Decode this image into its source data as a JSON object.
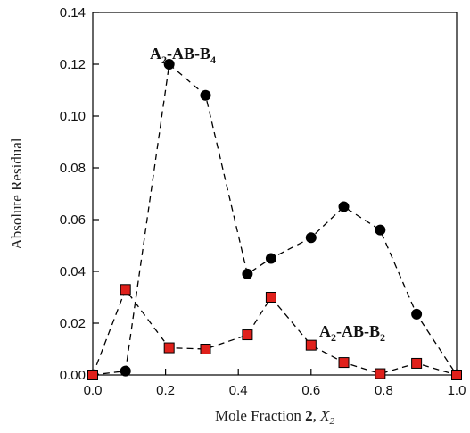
{
  "chart_data": {
    "type": "line",
    "xlabel_parts": [
      "Mole Fraction ",
      "2",
      ", X",
      "2"
    ],
    "ylabel": "Absolute Residual",
    "xlim": [
      0.0,
      1.0
    ],
    "ylim": [
      0.0,
      0.14
    ],
    "x_ticks": [
      "0.0",
      "0.2",
      "0.4",
      "0.6",
      "0.8",
      "1.0"
    ],
    "y_ticks": [
      "0.00",
      "0.02",
      "0.04",
      "0.06",
      "0.08",
      "0.10",
      "0.12",
      "0.14"
    ],
    "grid": false,
    "series": [
      {
        "name_parts": [
          "A",
          "2",
          "-AB-B",
          "4"
        ],
        "marker": "circle",
        "color": "#000000",
        "line_style": "dashed",
        "x": [
          0.0,
          0.09,
          0.21,
          0.31,
          0.425,
          0.49,
          0.6,
          0.69,
          0.79,
          0.89,
          1.0
        ],
        "y": [
          0.0,
          0.0015,
          0.12,
          0.108,
          0.039,
          0.045,
          0.053,
          0.065,
          0.056,
          0.0235,
          0.0
        ]
      },
      {
        "name_parts": [
          "A",
          "2",
          "-AB-B",
          "2"
        ],
        "marker": "square",
        "color": "#e0201b",
        "line_style": "dashed",
        "x": [
          0.0,
          0.09,
          0.21,
          0.31,
          0.425,
          0.49,
          0.6,
          0.69,
          0.79,
          0.89,
          1.0
        ],
        "y": [
          0.0,
          0.033,
          0.0105,
          0.01,
          0.0155,
          0.03,
          0.0115,
          0.0048,
          0.0005,
          0.0045,
          0.0
        ]
      }
    ]
  }
}
